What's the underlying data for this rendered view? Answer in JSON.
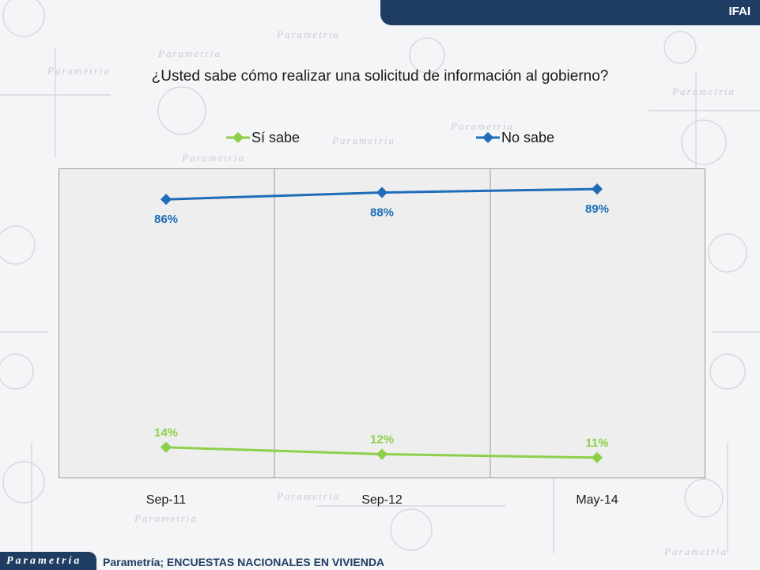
{
  "header": {
    "tab_label": "IFAI"
  },
  "footer": {
    "logo_text": "Parametría",
    "source": "Parametría; ENCUESTAS NACIONALES  EN VIVIENDA"
  },
  "background": {
    "watermark_text": "Parametria"
  },
  "chart_data": {
    "type": "line",
    "title": "¿Usted sabe cómo realizar una solicitud de información al gobierno?",
    "categories": [
      "Sep-11",
      "Sep-12",
      "May-14"
    ],
    "series": [
      {
        "name": "Sí sabe",
        "values": [
          14,
          12,
          11
        ],
        "labels": [
          "14%",
          "12%",
          "11%"
        ],
        "color": "#8cd04a"
      },
      {
        "name": "No sabe",
        "values": [
          86,
          88,
          89
        ],
        "labels": [
          "86%",
          "88%",
          "89%"
        ],
        "color": "#1f6db8"
      }
    ],
    "ylim": [
      5,
      95
    ],
    "legend": "top",
    "grid": "vertical"
  }
}
